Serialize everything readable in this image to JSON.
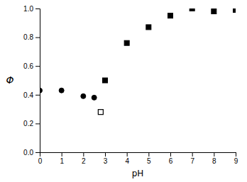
{
  "chart_data": {
    "type": "scatter",
    "xlabel": "pH",
    "ylabel": "Φ",
    "xlim": [
      0,
      9
    ],
    "ylim": [
      0,
      1.0
    ],
    "xticks": [
      0,
      1,
      2,
      3,
      4,
      5,
      6,
      7,
      8,
      9
    ],
    "yticks": [
      {
        "value": 0,
        "label": "0.0"
      },
      0.2,
      0.4,
      0.6,
      0.8,
      {
        "value": 1.0,
        "label": "1.0"
      }
    ],
    "series": [
      {
        "marker": "square",
        "color": "black",
        "x": [
          3.0,
          4.0,
          5.0,
          6.0,
          7.0,
          8.0,
          9.0
        ],
        "values": [
          0.5,
          0.76,
          0.87,
          0.95,
          1.0,
          0.98,
          0.99
        ]
      },
      {
        "marker": "circle",
        "color": "black",
        "x": [
          0.0,
          1.0,
          2.0,
          2.5
        ],
        "values": [
          0.43,
          0.43,
          0.39,
          0.38
        ]
      },
      {
        "marker": "square-open",
        "color": "black",
        "x": [
          2.8
        ],
        "values": [
          0.28
        ]
      }
    ]
  }
}
